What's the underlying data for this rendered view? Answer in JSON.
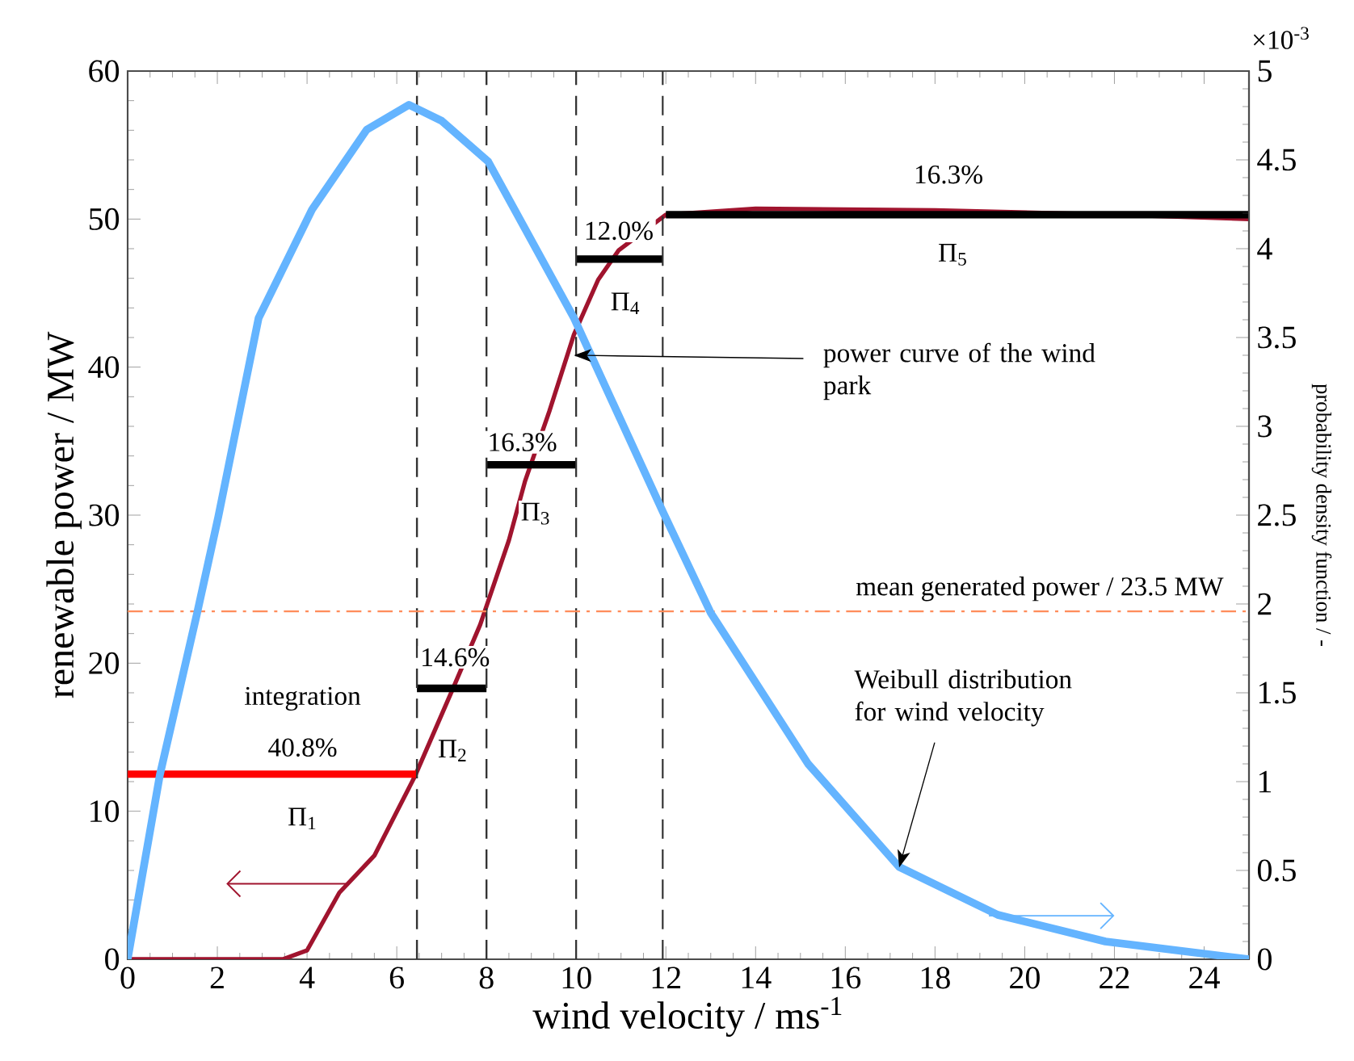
{
  "chart_data": {
    "type": "line",
    "xlabel": "wind velocity / ms$^{-1}$",
    "ylabel": "renewable power / MW",
    "y2label": "probability density function / -",
    "xlim": [
      0,
      25
    ],
    "xticks": [
      0,
      2,
      4,
      6,
      8,
      10,
      12,
      14,
      16,
      18,
      20,
      22,
      24
    ],
    "ylim": [
      0,
      60
    ],
    "yticks": [
      0,
      10,
      20,
      30,
      40,
      50,
      60
    ],
    "y2lim": [
      0,
      5
    ],
    "y2ticks": [
      0,
      0.5,
      1,
      1.5,
      2,
      2.5,
      3,
      3.5,
      4,
      4.5,
      5
    ],
    "line_style": "solid",
    "series": [
      {
        "color": "#a0142e",
        "x": [
          0,
          3.46,
          4.0,
          4.72,
          5.5,
          6.41,
          7.24,
          7.86,
          8.5,
          8.86,
          9.4,
          9.95,
          10.49,
          10.95,
          12,
          14,
          18,
          22,
          25
        ],
        "values": [
          0,
          0,
          0.6,
          4.5,
          7.0,
          12.4,
          18.2,
          22.6,
          28.3,
          32.3,
          37,
          42.2,
          45.9,
          47.9,
          50.3,
          50.7,
          50.6,
          50.3,
          50.0
        ]
      },
      {
        "color": "#64b4ff",
        "axis": "y2",
        "x": [
          0,
          0.72,
          1.55,
          2.02,
          2.92,
          4.11,
          5.33,
          6.27,
          7.0,
          8.04,
          9.95,
          11.93,
          13.0,
          15.17,
          17.2,
          19.4,
          21.8,
          25
        ],
        "values": [
          0,
          1.04,
          1.95,
          2.49,
          3.61,
          4.22,
          4.67,
          4.81,
          4.72,
          4.49,
          3.61,
          2.52,
          1.95,
          1.1,
          0.52,
          0.25,
          0.1,
          0
        ]
      },
      {
        "color": "#ff0000",
        "x": [
          0,
          6.45
        ],
        "values": [
          12.5,
          12.5
        ]
      },
      {
        "color": "#000000",
        "x": [
          6.45,
          8
        ],
        "values": [
          18.3,
          18.3
        ]
      },
      {
        "color": "#000000",
        "x": [
          8,
          10
        ],
        "values": [
          33.4,
          33.4
        ]
      },
      {
        "color": "#000000",
        "x": [
          10,
          11.93
        ],
        "values": [
          47.3,
          47.3
        ]
      },
      {
        "color": "#000000",
        "x": [
          12,
          25
        ],
        "values": [
          50.3,
          50.3
        ]
      }
    ],
    "ref_lines": [
      {
        "axis": "x",
        "value": 6.45,
        "color": "#333333",
        "line_style": "dashed"
      },
      {
        "axis": "x",
        "value": 8,
        "color": "#333333",
        "line_style": "dashed"
      },
      {
        "axis": "x",
        "value": 10,
        "color": "#333333",
        "line_style": "dashed"
      },
      {
        "axis": "x",
        "value": 11.93,
        "color": "#333333",
        "line_style": "dashed"
      },
      {
        "axis": "y",
        "value": 23.5,
        "label": "mean generated power / 23.5 MW",
        "color": "#ff8c5a",
        "line_style": "dashdot"
      }
    ],
    "annotations": [
      "integration",
      {
        "text": "40.8%",
        "x": 3.9,
        "y": 12.5
      },
      {
        "text": "Π$_{1}$",
        "x": 3.9,
        "y": 12.5
      },
      {
        "text": "14.6%",
        "x": 7.3,
        "y": 18.3
      },
      {
        "text": "Π$_{2}$",
        "x": 7.25,
        "y": 18.3
      },
      {
        "text": "16.3%",
        "x": 8.8,
        "y": 33.4
      },
      {
        "text": "Π$_{3}$",
        "x": 9.1,
        "y": 33.4
      },
      {
        "text": "12.0%",
        "x": 10.95,
        "y": 47.3
      },
      {
        "text": "Π$_{4}$",
        "x": 11.1,
        "y": 47.3
      },
      {
        "text": "16.3%",
        "x": 18.3,
        "y": 50.3
      },
      {
        "text": "Π$_{5}$",
        "x": 18.4,
        "y": 50.3
      },
      {
        "text": "power curve of the wind park",
        "x": 9.95,
        "y": 40.8
      },
      {
        "text": "Weibull distribution for wind velocity",
        "x": 17.2,
        "y": 6.2
      },
      "×10$^{-3}$"
    ]
  }
}
